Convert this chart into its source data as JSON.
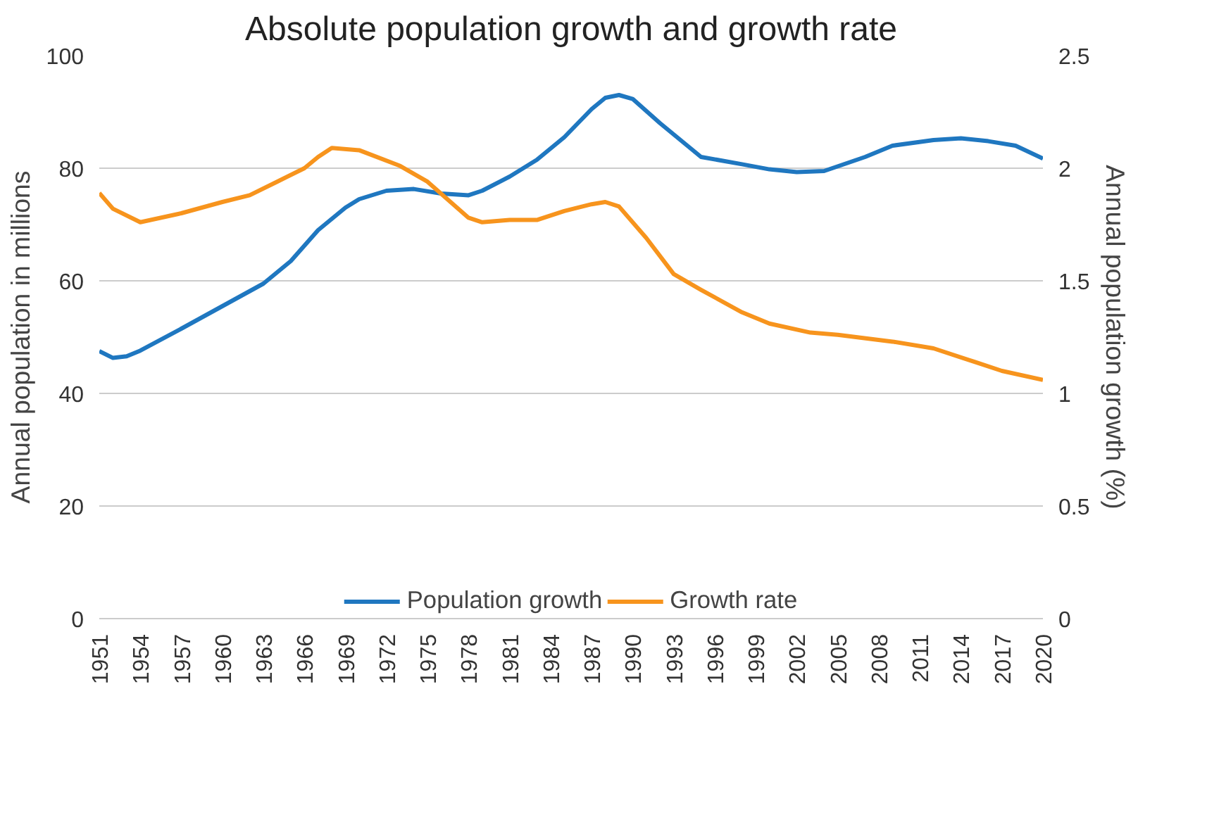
{
  "chart_data": {
    "type": "line",
    "title": "Absolute population growth and growth rate",
    "ylabel": "Annual population in millions",
    "y2label": "Annual population growth (%)",
    "xlim": [
      1951,
      2020
    ],
    "xticks": [
      1951,
      1954,
      1957,
      1960,
      1963,
      1966,
      1969,
      1972,
      1975,
      1978,
      1981,
      1984,
      1987,
      1990,
      1993,
      1996,
      1999,
      2002,
      2005,
      2008,
      2011,
      2014,
      2017,
      2020
    ],
    "ylim": [
      0,
      100
    ],
    "yticks": [
      0,
      20,
      40,
      60,
      80,
      100
    ],
    "y2lim": [
      0,
      2.5
    ],
    "y2ticks": [
      0,
      0.5,
      1,
      1.5,
      2,
      2.5
    ],
    "grid": "y",
    "legend": "bottom",
    "series": [
      {
        "name": "Population growth",
        "color": "#1f77c0",
        "x": [
          1951,
          1952,
          1953,
          1954,
          1957,
          1960,
          1963,
          1965,
          1967,
          1969,
          1970,
          1972,
          1974,
          1976,
          1978,
          1979,
          1981,
          1983,
          1985,
          1987,
          1988,
          1989,
          1990,
          1992,
          1994,
          1995,
          1998,
          2000,
          2002,
          2004,
          2007,
          2009,
          2012,
          2014,
          2016,
          2018,
          2020
        ],
        "values": [
          47.5,
          46.3,
          46.6,
          47.6,
          51.5,
          55.5,
          59.5,
          63.5,
          69,
          73,
          74.5,
          76,
          76.3,
          75.5,
          75.2,
          76,
          78.5,
          81.5,
          85.5,
          90.5,
          92.5,
          93,
          92.3,
          88,
          84,
          82,
          80.7,
          79.8,
          79.3,
          79.5,
          82,
          84,
          85,
          85.3,
          84.8,
          84,
          81.7
        ]
      },
      {
        "name": "Growth rate",
        "color": "#f7941d",
        "axis": "y2",
        "x": [
          1951,
          1952,
          1954,
          1957,
          1960,
          1962,
          1964,
          1966,
          1967,
          1968,
          1970,
          1973,
          1975,
          1978,
          1979,
          1981,
          1983,
          1985,
          1987,
          1988,
          1989,
          1991,
          1993,
          1995,
          1998,
          2000,
          2003,
          2005,
          2009,
          2012,
          2015,
          2017,
          2020
        ],
        "values": [
          1.89,
          1.82,
          1.76,
          1.8,
          1.85,
          1.88,
          1.94,
          2.0,
          2.05,
          2.09,
          2.08,
          2.01,
          1.94,
          1.78,
          1.76,
          1.77,
          1.77,
          1.81,
          1.84,
          1.85,
          1.83,
          1.69,
          1.53,
          1.46,
          1.36,
          1.31,
          1.27,
          1.26,
          1.23,
          1.2,
          1.14,
          1.1,
          1.06
        ]
      }
    ]
  }
}
